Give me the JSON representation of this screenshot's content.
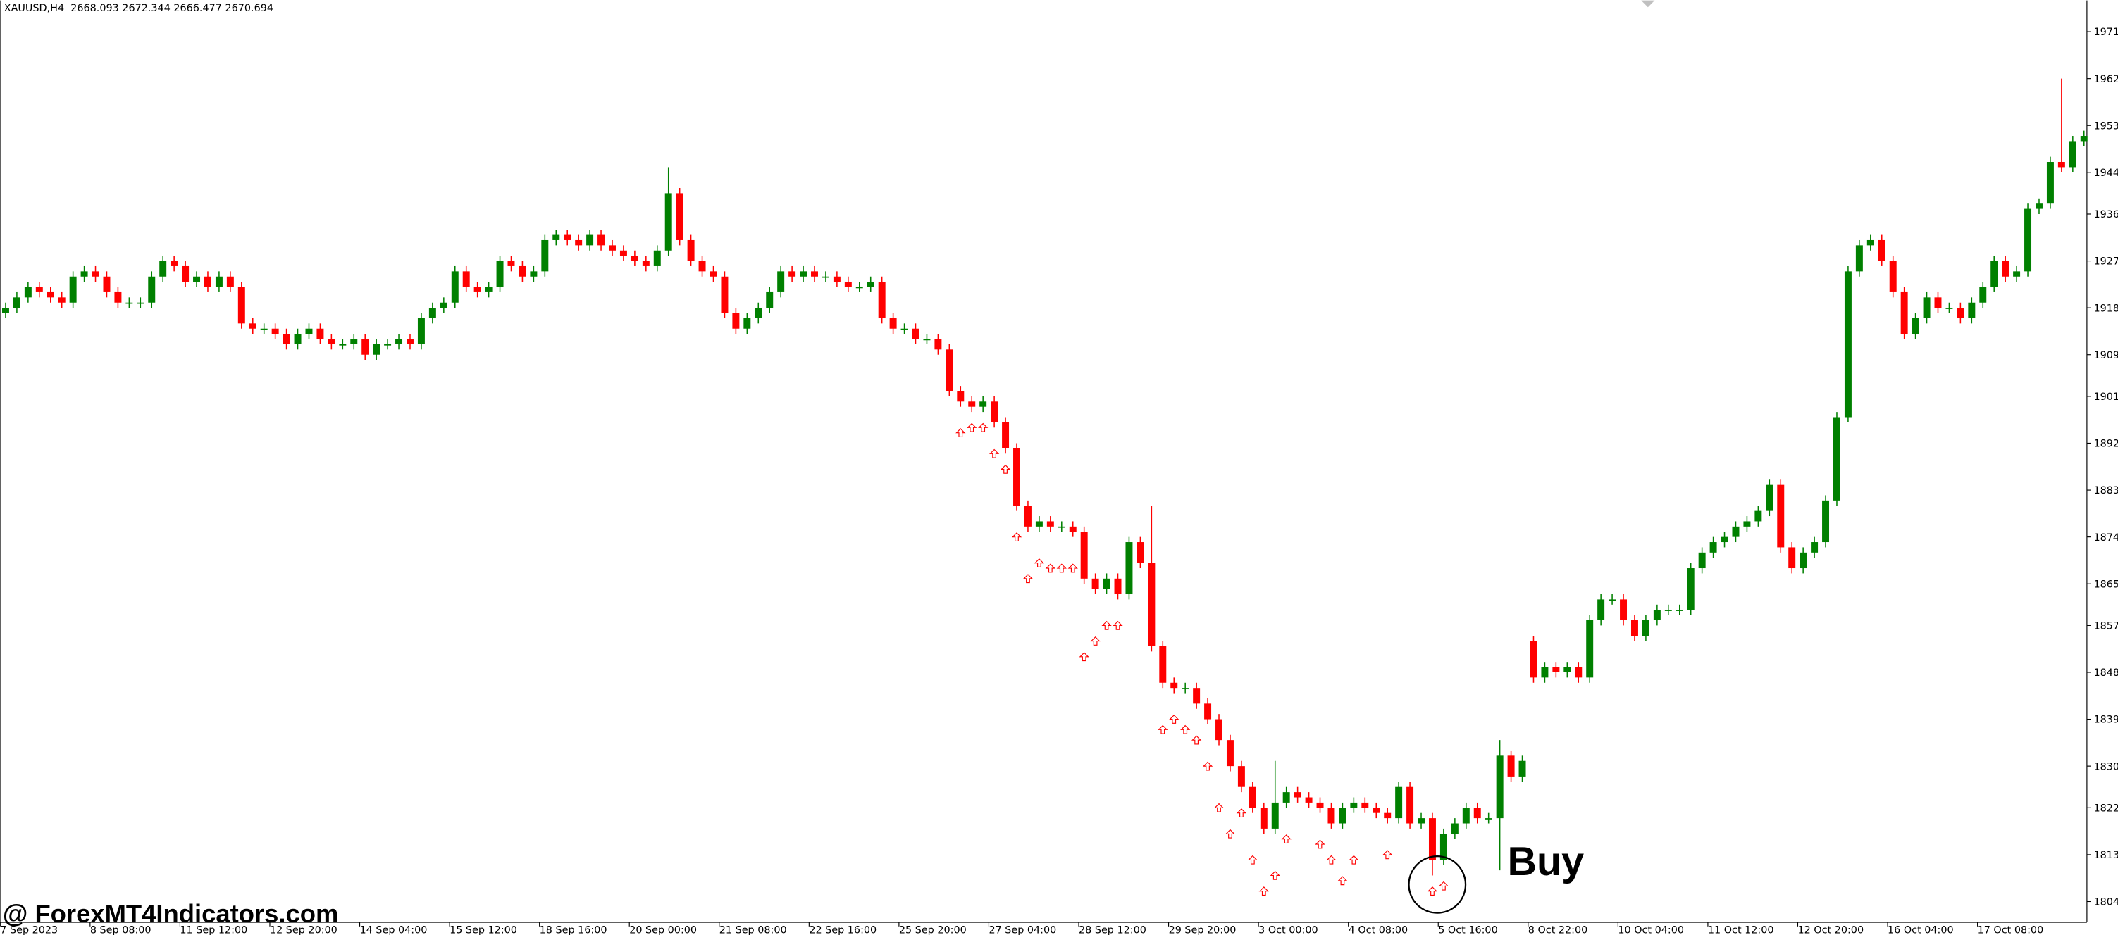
{
  "chart_data": {
    "type": "candlestick",
    "header": "XAUUSD,H4  2668.093 2672.344 2666.477 2670.694",
    "watermark": "@ ForexMT4Indicators.com",
    "annotation": "Buy",
    "bull_color": "#008000",
    "bear_color": "#ff0000",
    "signal_color": "#ff0000",
    "ylim": [
      1800,
      1977
    ],
    "yticks": [
      1804,
      1813,
      1822,
      1830,
      1839,
      1848,
      1857,
      1865,
      1874,
      1883,
      1892,
      1901,
      1909,
      1918,
      1927,
      1936,
      1944,
      1953,
      1962,
      1971
    ],
    "categories": [
      "7 Sep 2023",
      null,
      null,
      null,
      null,
      null,
      null,
      null,
      "8 Sep 08:00",
      null,
      null,
      null,
      null,
      null,
      null,
      null,
      "11 Sep 12:00",
      null,
      null,
      null,
      null,
      null,
      null,
      null,
      "12 Sep 20:00",
      null,
      null,
      null,
      null,
      null,
      null,
      null,
      "14 Sep 04:00",
      null,
      null,
      null,
      null,
      null,
      null,
      null,
      "15 Sep 12:00",
      null,
      null,
      null,
      null,
      null,
      null,
      null,
      "18 Sep 16:00",
      null,
      null,
      null,
      null,
      null,
      null,
      null,
      "20 Sep 00:00",
      null,
      null,
      null,
      null,
      null,
      null,
      null,
      "21 Sep 08:00",
      null,
      null,
      null,
      null,
      null,
      null,
      null,
      "22 Sep 16:00",
      null,
      null,
      null,
      null,
      null,
      null,
      null,
      "25 Sep 20:00",
      null,
      null,
      null,
      null,
      null,
      null,
      null,
      "27 Sep 04:00",
      null,
      null,
      null,
      null,
      null,
      null,
      null,
      "28 Sep 12:00",
      null,
      null,
      null,
      null,
      null,
      null,
      null,
      "29 Sep 20:00",
      null,
      null,
      null,
      null,
      null,
      null,
      null,
      "3 Oct 00:00",
      null,
      null,
      null,
      null,
      null,
      null,
      null,
      "4 Oct 08:00",
      null,
      null,
      null,
      null,
      null,
      null,
      null,
      "5 Oct 16:00",
      null,
      null,
      null,
      null,
      null,
      null,
      null,
      "8 Oct 22:00",
      null,
      null,
      null,
      null,
      null,
      null,
      null,
      "10 Oct 04:00",
      null,
      null,
      null,
      null,
      null,
      null,
      null,
      "11 Oct 12:00",
      null,
      null,
      null,
      null,
      null,
      null,
      null,
      "12 Oct 20:00",
      null,
      null,
      null,
      null,
      null,
      null,
      null,
      "16 Oct 04:00",
      null,
      null,
      null,
      null,
      null,
      null,
      null,
      "17 Oct 08:00",
      null,
      null,
      null,
      null,
      null,
      null,
      null,
      null,
      null
    ],
    "open": [
      1917,
      1918,
      1920,
      1922,
      1921,
      1920,
      1919,
      1924,
      1925,
      1924,
      1921,
      1919,
      1919,
      1919,
      1924,
      1927,
      1926,
      1923,
      1924,
      1922,
      1924,
      1922,
      1915,
      1914,
      1914,
      1913,
      1911,
      1913,
      1914,
      1912,
      1911,
      1911,
      1912,
      1909,
      1911,
      1911,
      1912,
      1911,
      1916,
      1918,
      1919,
      1925,
      1922,
      1921,
      1922,
      1927,
      1926,
      1924,
      1925,
      1931,
      1932,
      1931,
      1930,
      1932,
      1930,
      1929,
      1928,
      1927,
      1926,
      1929,
      1940,
      1931,
      1927,
      1925,
      1924,
      1917,
      1914,
      1916,
      1918,
      1921,
      1925,
      1924,
      1925,
      1924,
      1924,
      1923,
      1922,
      1922,
      1923,
      1916,
      1914,
      1914,
      1912,
      1912,
      1910,
      1902,
      1900,
      1899,
      1900,
      1896,
      1891,
      1880,
      1876,
      1877,
      1876,
      1876,
      1875,
      1866,
      1864,
      1866,
      1863,
      1873,
      1869,
      1853,
      1846,
      1845,
      1845,
      1842,
      1839,
      1835,
      1830,
      1826,
      1822,
      1818,
      1823,
      1825,
      1824,
      1823,
      1822,
      1819,
      1822,
      1823,
      1822,
      1821,
      1820,
      1826,
      1819,
      1820,
      1812,
      1817,
      1819,
      1822,
      1820,
      1820,
      1832,
      1828,
      1854,
      1847,
      1849,
      1848,
      1849,
      1847,
      1858,
      1862,
      1862,
      1858,
      1855,
      1858,
      1860,
      1860,
      1860,
      1868,
      1871,
      1873,
      1874,
      1876,
      1877,
      1879,
      1884,
      1872,
      1868,
      1871,
      1873,
      1881,
      1897,
      1925,
      1930,
      1931,
      1927,
      1921,
      1913,
      1916,
      1920,
      1918,
      1918,
      1916,
      1919,
      1922,
      1927,
      1924,
      1925,
      1937,
      1938,
      1946,
      1945,
      1950
    ],
    "high": [
      1919,
      1921,
      1923,
      1923,
      1922,
      1921,
      1925,
      1926,
      1926,
      1925,
      1922,
      1920,
      1920,
      1925,
      1928,
      1928,
      1927,
      1925,
      1925,
      1925,
      1925,
      1923,
      1916,
      1915,
      1915,
      1914,
      1914,
      1915,
      1915,
      1913,
      1912,
      1913,
      1913,
      1912,
      1912,
      1913,
      1913,
      1917,
      1919,
      1920,
      1926,
      1926,
      1923,
      1923,
      1928,
      1928,
      1927,
      1926,
      1932,
      1933,
      1933,
      1932,
      1933,
      1933,
      1931,
      1930,
      1929,
      1928,
      1930,
      1945,
      1941,
      1932,
      1928,
      1926,
      1925,
      1918,
      1917,
      1919,
      1922,
      1926,
      1926,
      1926,
      1926,
      1925,
      1925,
      1924,
      1923,
      1924,
      1924,
      1917,
      1915,
      1915,
      1913,
      1913,
      1911,
      1903,
      1901,
      1901,
      1901,
      1897,
      1892,
      1881,
      1878,
      1878,
      1877,
      1877,
      1876,
      1867,
      1867,
      1867,
      1874,
      1874,
      1880,
      1854,
      1847,
      1846,
      1846,
      1843,
      1840,
      1836,
      1831,
      1827,
      1823,
      1831,
      1826,
      1826,
      1825,
      1824,
      1823,
      1823,
      1824,
      1824,
      1823,
      1822,
      1827,
      1827,
      1821,
      1821,
      1818,
      1820,
      1823,
      1823,
      1821,
      1835,
      1833,
      1832,
      1855,
      1850,
      1850,
      1850,
      1850,
      1859,
      1863,
      1863,
      1863,
      1859,
      1859,
      1861,
      1861,
      1861,
      1869,
      1872,
      1874,
      1875,
      1877,
      1878,
      1880,
      1885,
      1885,
      1873,
      1872,
      1874,
      1882,
      1898,
      1926,
      1931,
      1932,
      1932,
      1928,
      1922,
      1917,
      1921,
      1921,
      1919,
      1919,
      1920,
      1923,
      1928,
      1928,
      1926,
      1938,
      1939,
      1947,
      1962,
      1951,
      1952
    ],
    "low": [
      1916,
      1917,
      1919,
      1920,
      1919,
      1918,
      1918,
      1923,
      1923,
      1920,
      1918,
      1918,
      1918,
      1918,
      1923,
      1925,
      1922,
      1922,
      1921,
      1921,
      1921,
      1914,
      1913,
      1913,
      1912,
      1910,
      1910,
      1912,
      1911,
      1910,
      1910,
      1910,
      1908,
      1908,
      1910,
      1910,
      1910,
      1910,
      1915,
      1917,
      1918,
      1921,
      1920,
      1920,
      1921,
      1925,
      1923,
      1923,
      1924,
      1930,
      1930,
      1929,
      1929,
      1929,
      1928,
      1927,
      1926,
      1925,
      1925,
      1928,
      1930,
      1926,
      1924,
      1923,
      1916,
      1913,
      1913,
      1915,
      1917,
      1920,
      1923,
      1923,
      1923,
      1923,
      1922,
      1921,
      1921,
      1921,
      1915,
      1913,
      1913,
      1911,
      1911,
      1909,
      1901,
      1899,
      1898,
      1898,
      1895,
      1890,
      1879,
      1875,
      1875,
      1875,
      1875,
      1874,
      1865,
      1863,
      1863,
      1862,
      1862,
      1868,
      1852,
      1845,
      1844,
      1844,
      1841,
      1838,
      1834,
      1829,
      1825,
      1821,
      1817,
      1817,
      1822,
      1823,
      1822,
      1821,
      1818,
      1818,
      1821,
      1821,
      1820,
      1819,
      1819,
      1818,
      1818,
      1809,
      1811,
      1816,
      1818,
      1819,
      1819,
      1810,
      1827,
      1827,
      1846,
      1846,
      1847,
      1847,
      1846,
      1846,
      1857,
      1861,
      1857,
      1854,
      1854,
      1857,
      1859,
      1859,
      1859,
      1867,
      1870,
      1872,
      1873,
      1875,
      1876,
      1878,
      1871,
      1867,
      1867,
      1870,
      1872,
      1880,
      1896,
      1924,
      1929,
      1926,
      1920,
      1912,
      1912,
      1915,
      1917,
      1917,
      1915,
      1915,
      1918,
      1921,
      1923,
      1923,
      1924,
      1936,
      1937,
      1944,
      1944,
      1949
    ],
    "close": [
      1918,
      1920,
      1922,
      1921,
      1920,
      1919,
      1924,
      1925,
      1924,
      1921,
      1919,
      1919,
      1919,
      1924,
      1927,
      1926,
      1923,
      1924,
      1922,
      1924,
      1922,
      1915,
      1914,
      1914,
      1913,
      1911,
      1913,
      1914,
      1912,
      1911,
      1911,
      1912,
      1909,
      1911,
      1911,
      1912,
      1911,
      1916,
      1918,
      1919,
      1925,
      1922,
      1921,
      1922,
      1927,
      1926,
      1924,
      1925,
      1931,
      1932,
      1931,
      1930,
      1932,
      1930,
      1929,
      1928,
      1927,
      1926,
      1929,
      1940,
      1931,
      1927,
      1925,
      1924,
      1917,
      1914,
      1916,
      1918,
      1921,
      1925,
      1924,
      1925,
      1924,
      1924,
      1923,
      1922,
      1922,
      1923,
      1916,
      1914,
      1914,
      1912,
      1912,
      1910,
      1902,
      1900,
      1899,
      1900,
      1896,
      1891,
      1880,
      1876,
      1877,
      1876,
      1876,
      1875,
      1866,
      1864,
      1866,
      1863,
      1873,
      1869,
      1853,
      1846,
      1845,
      1845,
      1842,
      1839,
      1835,
      1830,
      1826,
      1822,
      1818,
      1823,
      1825,
      1824,
      1823,
      1822,
      1819,
      1822,
      1823,
      1822,
      1821,
      1820,
      1826,
      1819,
      1820,
      1812,
      1817,
      1819,
      1822,
      1820,
      1820,
      1832,
      1828,
      1831,
      1847,
      1849,
      1848,
      1849,
      1847,
      1858,
      1862,
      1862,
      1858,
      1855,
      1858,
      1860,
      1860,
      1860,
      1868,
      1871,
      1873,
      1874,
      1876,
      1877,
      1879,
      1884,
      1872,
      1868,
      1871,
      1873,
      1881,
      1897,
      1925,
      1930,
      1931,
      1927,
      1921,
      1913,
      1916,
      1920,
      1918,
      1918,
      1916,
      1919,
      1922,
      1927,
      1924,
      1925,
      1937,
      1938,
      1946,
      1945,
      1950,
      1951
    ],
    "signals": {
      "x": [
        85,
        86,
        87,
        88,
        89,
        90,
        91,
        92,
        93,
        94,
        95,
        96,
        97,
        98,
        99,
        103,
        104,
        105,
        106,
        107,
        108,
        109,
        110,
        111,
        112,
        113,
        114,
        117,
        118,
        119,
        120,
        123,
        127,
        128
      ],
      "values": [
        1894,
        1895,
        1895,
        1890,
        1887,
        1874,
        1866,
        1869,
        1868,
        1868,
        1868,
        1851,
        1854,
        1857,
        1857,
        1837,
        1839,
        1837,
        1835,
        1830,
        1822,
        1817,
        1821,
        1812,
        1806,
        1809,
        1816,
        1815,
        1812,
        1808,
        1812,
        1813,
        1806,
        1807
      ]
    }
  }
}
